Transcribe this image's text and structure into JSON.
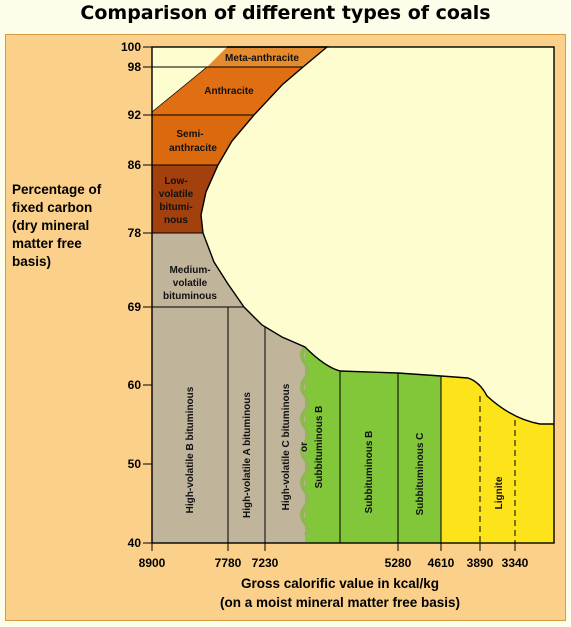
{
  "title": "Comparison of different types of coals",
  "y_axis_label": [
    "Percentage of",
    "fixed carbon",
    "(dry mineral",
    "matter free",
    "basis)"
  ],
  "x_axis_label": [
    "Gross calorific value in kcal/kg",
    "(on a moist mineral matter free basis)"
  ],
  "y_ticks": [
    "100",
    "98",
    "92",
    "86",
    "78",
    "69",
    "60",
    "50",
    "40"
  ],
  "x_ticks": [
    "8900",
    "7780",
    "7230",
    "5280",
    "4610",
    "3890",
    "3340"
  ],
  "regions": {
    "meta_anthracite": "Meta-anthracite",
    "anthracite": "Anthracite",
    "semi_anthracite": [
      "Semi-",
      "anthracite"
    ],
    "low_volatile": [
      "Low-",
      "volatile",
      "bitumi-",
      "nous"
    ],
    "medium_volatile": [
      "Medium-",
      "volatile",
      "bituminous"
    ],
    "hvb": "High-volatile B bituminous",
    "hva": "High-volatile A bituminous",
    "hvc": "High-volatile C bituminous",
    "or": "or",
    "sub_b_1": "Subbituminous B",
    "sub_b_2": "Subbituminous B",
    "sub_c": "Subbituminous C",
    "lignite": "Lignite"
  },
  "colors": {
    "frame": "#fbd08a",
    "plot_bg": "#fdfdd0",
    "meta_anthracite": "#e58b2d",
    "anthracite": "#e06e12",
    "semi_anthracite": "#db6a0f",
    "low_volatile": "#a2400e",
    "bituminous": "#c0b49a",
    "subbituminous": "#82c63a",
    "lignite": "#fde319"
  }
}
